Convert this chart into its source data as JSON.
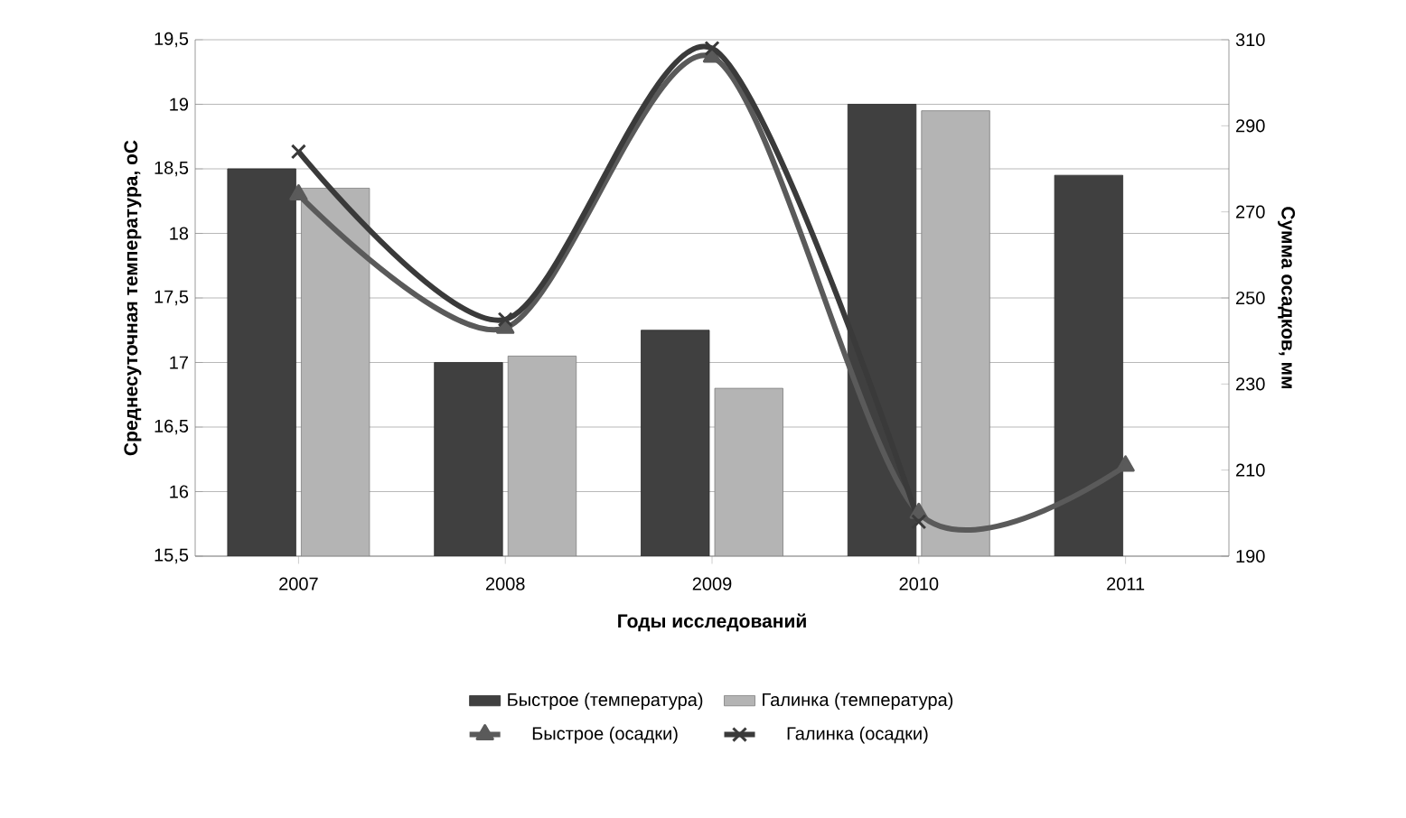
{
  "chart_data": {
    "type": "bar",
    "xlabel": "Годы исследований",
    "ylabel": "Среднесуточная температура, оС",
    "y2label": "Сумма осадков, мм",
    "categories": [
      "2007",
      "2008",
      "2009",
      "2010",
      "2011"
    ],
    "series": [
      {
        "name": "Быстрое (температура)",
        "color": "#404040",
        "values": [
          18.5,
          17.0,
          17.25,
          19.0,
          18.45
        ]
      },
      {
        "name": "Галинка (температура)",
        "color": "#b4b4b4",
        "values": [
          18.35,
          17.05,
          16.8,
          18.95,
          null
        ]
      },
      {
        "name": "Быстрое (осадки)",
        "type": "line",
        "axis": "y2",
        "marker": "triangle",
        "color": "#5a5a5a",
        "values": [
          274,
          243,
          306,
          200,
          211
        ]
      },
      {
        "name": "Галинка (осадки)",
        "type": "line",
        "axis": "y2",
        "marker": "cross",
        "color": "#3a3a3a",
        "values": [
          284,
          245,
          308,
          198,
          null
        ]
      }
    ],
    "ylim": [
      15.5,
      19.5
    ],
    "yticks": [
      {
        "value": 15.5,
        "label": "15,5"
      },
      16,
      {
        "value": 16.5,
        "label": "16,5"
      },
      17,
      {
        "value": 17.5,
        "label": "17,5"
      },
      18,
      {
        "value": 18.5,
        "label": "18,5"
      },
      19,
      {
        "value": 19.5,
        "label": "19,5"
      }
    ],
    "y2lim": [
      190,
      310
    ],
    "y2ticks": [
      190,
      210,
      230,
      250,
      270,
      290,
      310
    ],
    "grid": "y",
    "legend": "bottom"
  }
}
